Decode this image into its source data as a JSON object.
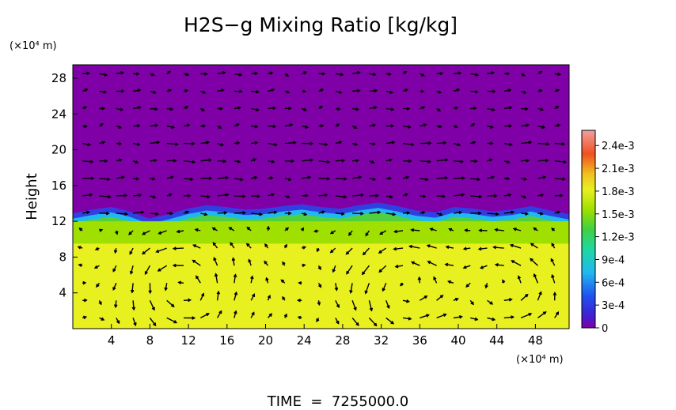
{
  "chart_data": {
    "type": "heatmap",
    "title": "H2S−g Mixing Ratio [kg/kg]",
    "ylabel": "Height",
    "xunit": "(×10⁴ m)",
    "yunit": "(×10⁴ m)",
    "footer": "TIME  =  7255000.0",
    "xlim": [
      0,
      51.5
    ],
    "ylim": [
      0,
      29.5
    ],
    "xticks": [
      "4",
      "8",
      "12",
      "16",
      "20",
      "24",
      "28",
      "32",
      "36",
      "40",
      "44",
      "48"
    ],
    "yticks": [
      "4",
      "8",
      "12",
      "16",
      "20",
      "24",
      "28"
    ],
    "colorbar": {
      "min": 0,
      "max": 0.0026,
      "ticks": [
        "2.4e-3",
        "2.1e-3",
        "1.8e-3",
        "1.5e-3",
        "1.2e-3",
        "9e-4",
        "6e-4",
        "3e-4",
        "0"
      ],
      "colors": [
        "#8000a8",
        "#3040e0",
        "#20b0f0",
        "#20d8a0",
        "#40d040",
        "#a0e000",
        "#e8f020",
        "#f0b020",
        "#f05020",
        "#f0a0a0"
      ]
    },
    "fields": {
      "upper_value": 0,
      "interface_height": [
        12.4,
        12.8,
        13.1,
        12.6,
        11.8,
        12.3,
        12.9,
        13.3,
        13.1,
        12.8,
        12.9,
        13.2,
        13.4,
        13.1,
        12.9,
        13.3,
        13.6,
        13.2,
        12.7,
        12.5,
        13.1,
        12.9,
        12.6,
        12.8,
        13.2,
        12.7,
        12.3
      ],
      "mid_layer_value": 0.00145,
      "mid_layer_top_height": 9.5,
      "lower_layer_value": 0.00175
    }
  }
}
